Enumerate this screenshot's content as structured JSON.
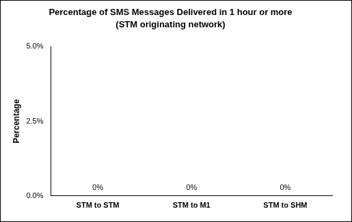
{
  "chart_data": {
    "type": "bar",
    "title": "Percentage of SMS Messages Delivered in 1 hour or more",
    "subtitle": "(STM originating network)",
    "y_label": "Percentage",
    "categories": [
      "STM to STM",
      "STM to M1",
      "STM to SHM"
    ],
    "values": [
      0,
      0,
      0
    ],
    "value_labels": [
      "0%",
      "0%",
      "0%"
    ],
    "data_labels": true,
    "color": "#4f81bd",
    "ylim": [
      0,
      5
    ],
    "yticks": [
      {
        "value": 0,
        "label": "0.0%"
      },
      {
        "value": 2.5,
        "label": "2.5%"
      },
      {
        "value": 5,
        "label": "5.0%"
      }
    ],
    "grid": false,
    "legend": false
  }
}
